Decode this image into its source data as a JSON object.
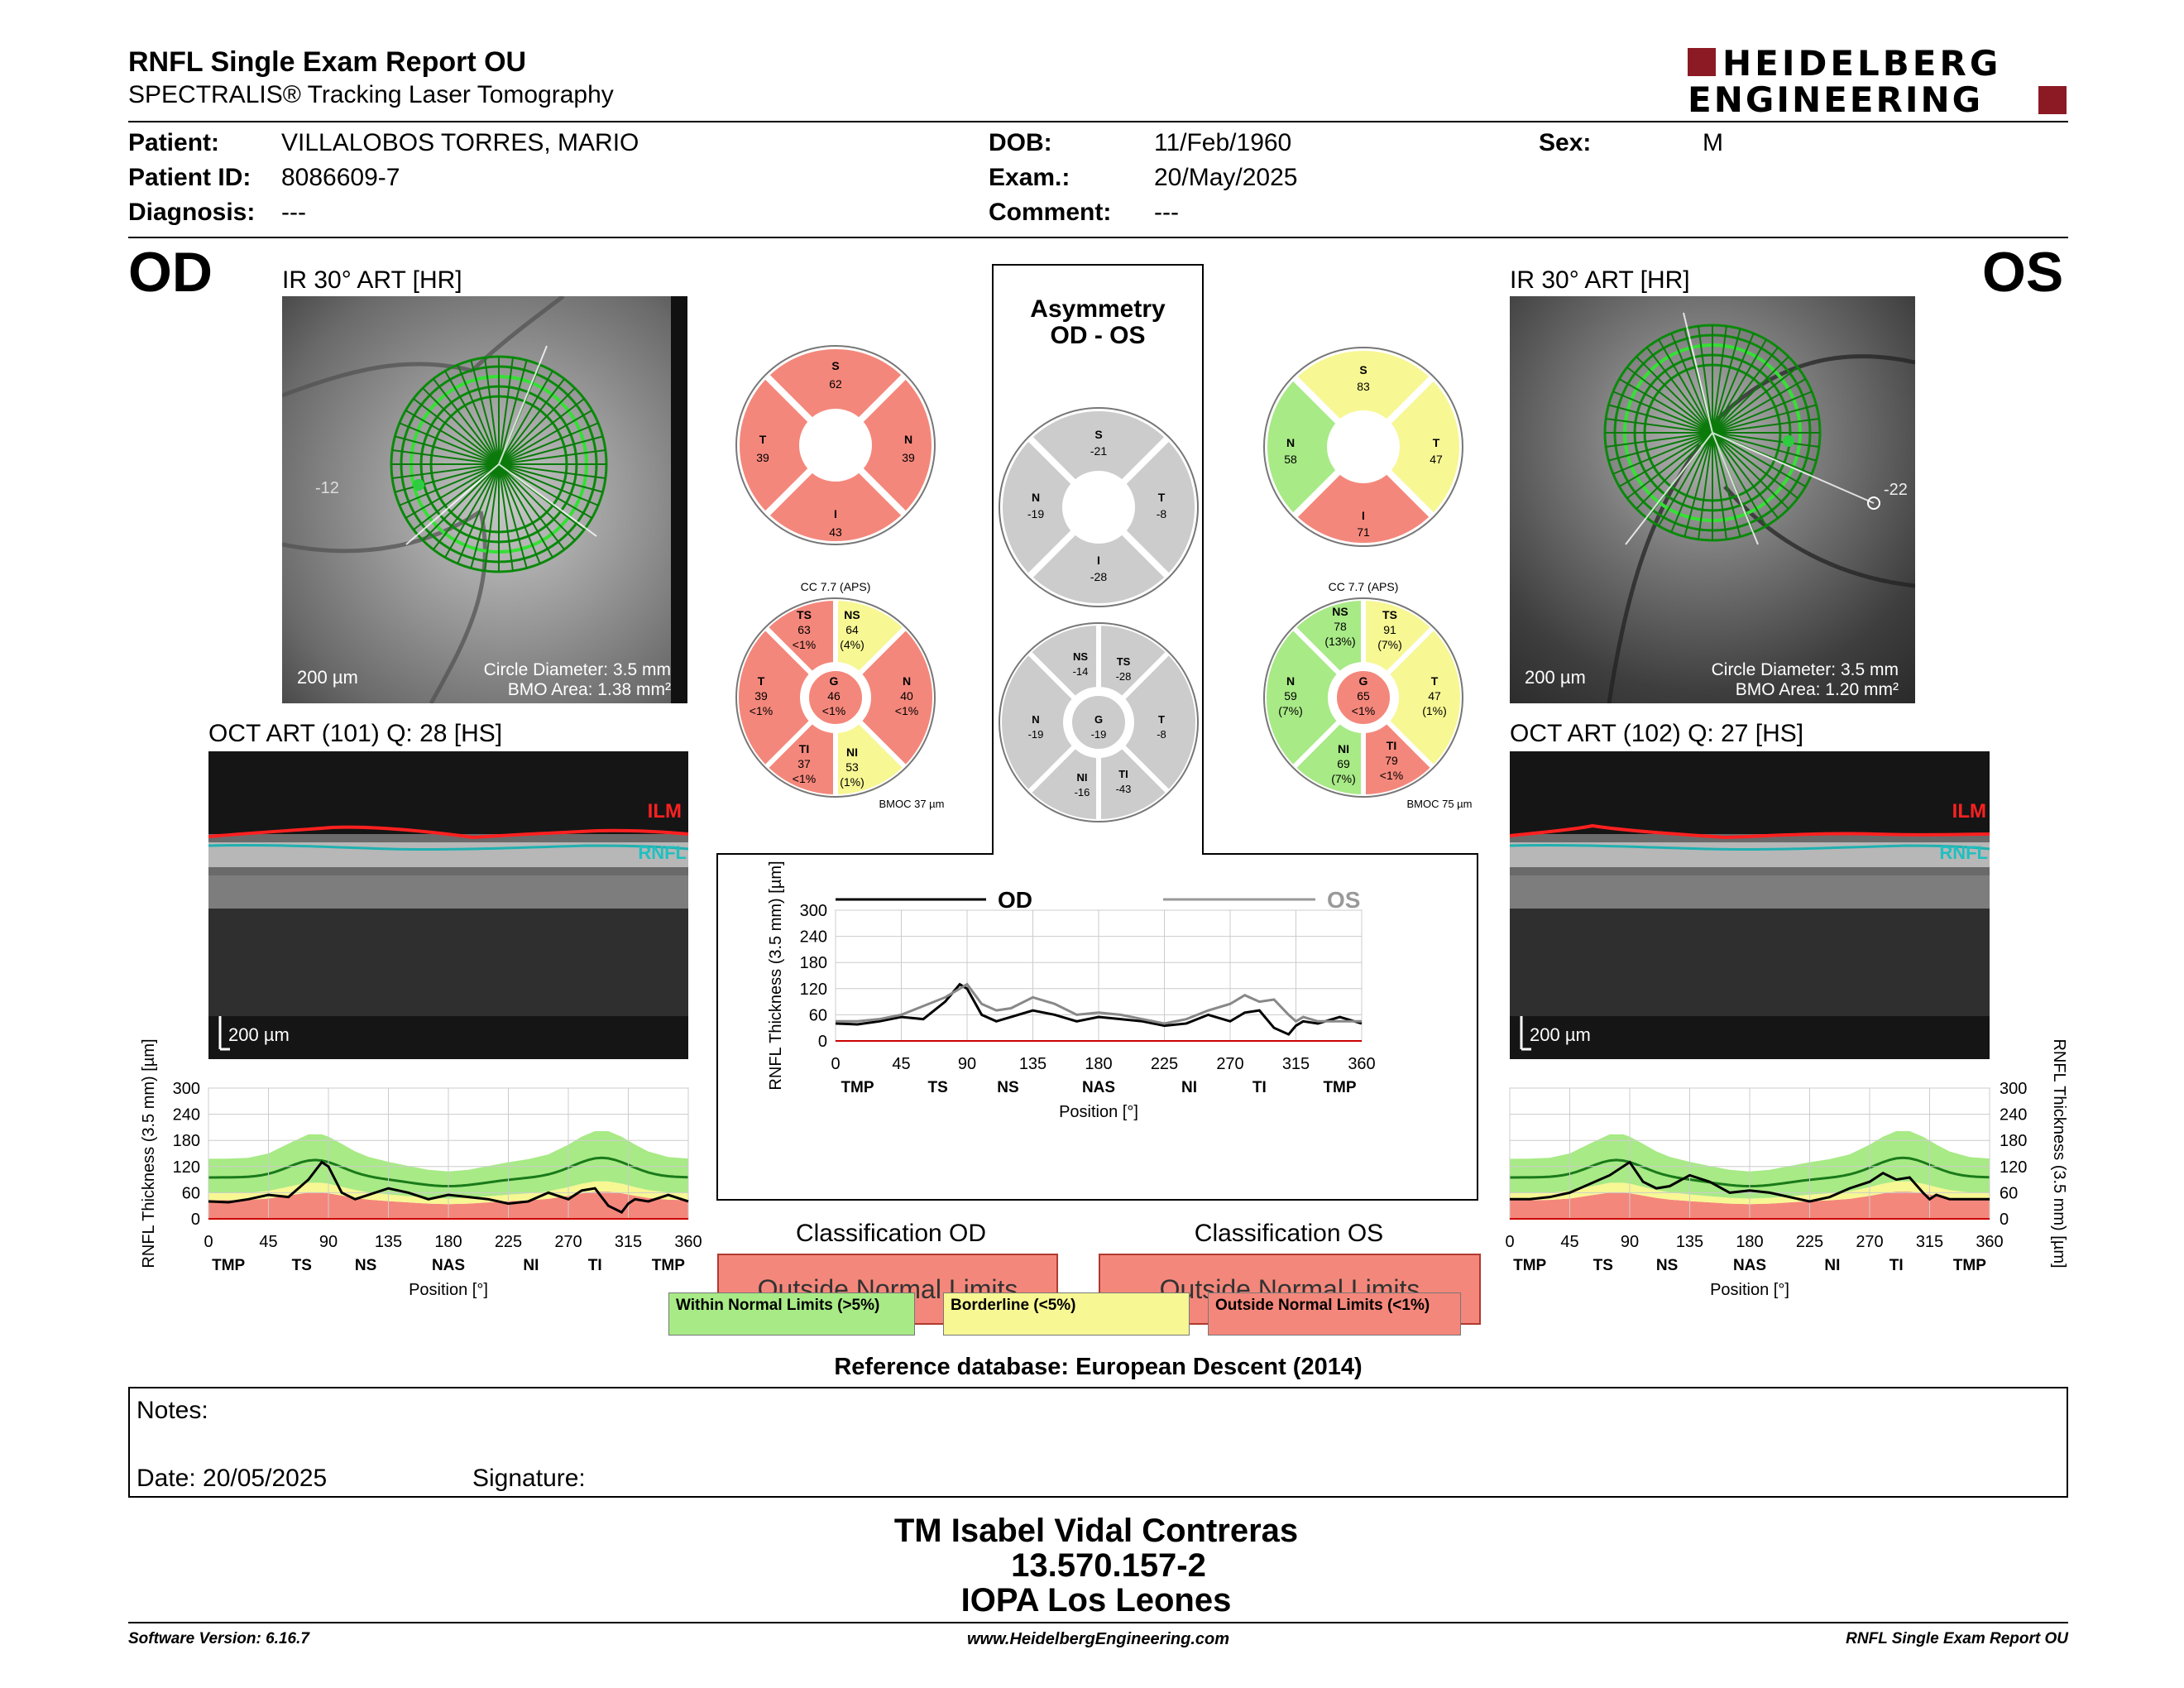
{
  "header": {
    "title": "RNFL Single Exam Report OU",
    "subtitle": "SPECTRALIS® Tracking Laser Tomography",
    "logo_line1": "HEIDELBERG",
    "logo_line2": "ENGINEERING"
  },
  "patient": {
    "patient_label": "Patient:",
    "patient_value": "VILLALOBOS TORRES, MARIO",
    "id_label": "Patient ID:",
    "id_value": "8086609-7",
    "diagnosis_label": "Diagnosis:",
    "diagnosis_value": "---",
    "dob_label": "DOB:",
    "dob_value": "11/Feb/1960",
    "exam_label": "Exam.:",
    "exam_value": "20/May/2025",
    "comment_label": "Comment:",
    "comment_value": "---",
    "sex_label": "Sex:",
    "sex_value": "M"
  },
  "od": {
    "eye": "OD",
    "ir_title": "IR 30° ART [HR]",
    "scale": "200 µm",
    "circle_diameter": "Circle Diameter: 3.5 mm",
    "bmo_area": "BMO Area: 1.38 mm²",
    "marker": "-12",
    "oct_title": "OCT ART (101) Q: 28 [HS]",
    "oct_scale": "200 µm",
    "ilm": "ILM",
    "rnfl": "RNFL",
    "quad": {
      "S": "62",
      "T": "39",
      "N": "39",
      "I": "43"
    },
    "sect": {
      "TS": [
        "63",
        "<1%"
      ],
      "NS": [
        "64",
        "(4%)"
      ],
      "T": [
        "39",
        "<1%"
      ],
      "G": [
        "46",
        "<1%"
      ],
      "N": [
        "40",
        "<1%"
      ],
      "TI": [
        "37",
        "<1%"
      ],
      "NI": [
        "53",
        "(1%)"
      ]
    },
    "cc": "CC 7.7 (APS)",
    "bmoc": "BMOC 37 µm",
    "classification_title": "Classification OD",
    "classification": "Outside Normal Limits"
  },
  "os": {
    "eye": "OS",
    "ir_title": "IR 30° ART [HR]",
    "scale": "200 µm",
    "circle_diameter": "Circle Diameter: 3.5 mm",
    "bmo_area": "BMO Area: 1.20 mm²",
    "marker": "-22",
    "oct_title": "OCT ART (102) Q: 27 [HS]",
    "oct_scale": "200 µm",
    "ilm": "ILM",
    "rnfl": "RNFL",
    "quad": {
      "S": "83",
      "N": "58",
      "T": "47",
      "I": "71"
    },
    "sect": {
      "NS": [
        "78",
        "(13%)"
      ],
      "TS": [
        "91",
        "(7%)"
      ],
      "N": [
        "59",
        "(7%)"
      ],
      "G": [
        "65",
        "<1%"
      ],
      "T": [
        "47",
        "(1%)"
      ],
      "NI": [
        "69",
        "(7%)"
      ],
      "TI": [
        "79",
        "<1%"
      ]
    },
    "cc": "CC 7.7 (APS)",
    "bmoc": "BMOC 75 µm",
    "classification_title": "Classification OS",
    "classification": "Outside Normal Limits"
  },
  "asymmetry": {
    "title1": "Asymmetry",
    "title2": "OD - OS",
    "quad": {
      "S": "-21",
      "N": "-19",
      "T": "-8",
      "I": "-28"
    },
    "sect": {
      "NS": "-14",
      "TS": "-28",
      "N": "-19",
      "G": "-19",
      "T": "-8",
      "NI": "-16",
      "TI": "-43"
    }
  },
  "chart_data": [
    {
      "type": "line",
      "title": "",
      "legend": [
        "OD",
        "OS"
      ],
      "xlabel": "Position [°]",
      "ylabel": "RNFL Thickness (3.5 mm) [µm]",
      "xlim": [
        0,
        360
      ],
      "ylim": [
        0,
        300
      ],
      "xticks": [
        "0",
        "45",
        "90",
        "135",
        "180",
        "225",
        "270",
        "315",
        "360"
      ],
      "yticks": [
        "0",
        "60",
        "120",
        "180",
        "240",
        "300"
      ],
      "sector_labels": [
        "TMP",
        "TS",
        "NS",
        "NAS",
        "NI",
        "TI",
        "TMP"
      ],
      "x": [
        0,
        15,
        30,
        45,
        60,
        75,
        85,
        90,
        100,
        110,
        120,
        135,
        150,
        165,
        180,
        195,
        210,
        225,
        240,
        255,
        270,
        280,
        290,
        300,
        310,
        315,
        320,
        330,
        345,
        360
      ],
      "series": [
        {
          "name": "OD",
          "values": [
            40,
            38,
            45,
            55,
            50,
            90,
            130,
            120,
            60,
            45,
            55,
            70,
            60,
            45,
            55,
            50,
            45,
            35,
            40,
            60,
            45,
            65,
            70,
            30,
            15,
            35,
            45,
            40,
            55,
            40
          ]
        },
        {
          "name": "OS",
          "values": [
            45,
            45,
            50,
            60,
            80,
            100,
            120,
            130,
            85,
            70,
            75,
            100,
            85,
            60,
            65,
            60,
            50,
            40,
            50,
            70,
            85,
            105,
            90,
            95,
            60,
            45,
            55,
            45,
            45,
            45
          ]
        }
      ]
    },
    {
      "type": "line",
      "title": "",
      "legend": [],
      "xlabel": "Position [°]",
      "ylabel": "RNFL Thickness (3.5 mm) [µm]",
      "xlim": [
        0,
        360
      ],
      "ylim": [
        0,
        300
      ],
      "xticks": [
        "0",
        "45",
        "90",
        "135",
        "180",
        "225",
        "270",
        "315",
        "360"
      ],
      "yticks": [
        "0",
        "60",
        "120",
        "180",
        "240",
        "300"
      ],
      "sector_labels": [
        "TMP",
        "TS",
        "NS",
        "NAS",
        "NI",
        "TI",
        "TMP"
      ],
      "x": [
        0,
        15,
        30,
        45,
        60,
        75,
        85,
        90,
        100,
        110,
        120,
        135,
        150,
        165,
        180,
        195,
        210,
        225,
        240,
        255,
        270,
        280,
        290,
        300,
        310,
        315,
        320,
        330,
        345,
        360
      ],
      "series": [
        {
          "name": "OD",
          "values": [
            40,
            38,
            45,
            55,
            50,
            90,
            130,
            120,
            60,
            45,
            55,
            70,
            60,
            45,
            55,
            50,
            45,
            35,
            40,
            60,
            45,
            65,
            70,
            30,
            15,
            35,
            45,
            40,
            55,
            40
          ]
        }
      ]
    },
    {
      "type": "line",
      "title": "",
      "legend": [],
      "xlabel": "Position [°]",
      "ylabel": "RNFL Thickness (3.5 mm) [µm]",
      "xlim": [
        0,
        360
      ],
      "ylim": [
        0,
        300
      ],
      "xticks": [
        "0",
        "45",
        "90",
        "135",
        "180",
        "225",
        "270",
        "315",
        "360"
      ],
      "yticks": [
        "0",
        "60",
        "120",
        "180",
        "240",
        "300"
      ],
      "sector_labels": [
        "TMP",
        "TS",
        "NS",
        "NAS",
        "NI",
        "TI",
        "TMP"
      ],
      "x": [
        0,
        15,
        30,
        45,
        60,
        75,
        85,
        90,
        100,
        110,
        120,
        135,
        150,
        165,
        180,
        195,
        210,
        225,
        240,
        255,
        270,
        280,
        290,
        300,
        310,
        315,
        320,
        330,
        345,
        360
      ],
      "series": [
        {
          "name": "OS",
          "values": [
            45,
            45,
            50,
            60,
            80,
            100,
            120,
            130,
            85,
            70,
            75,
            100,
            85,
            60,
            65,
            60,
            50,
            40,
            50,
            70,
            85,
            105,
            90,
            95,
            60,
            45,
            55,
            45,
            45,
            45
          ]
        }
      ]
    }
  ],
  "legend_classes": {
    "within": "Within Normal Limits (>5%)",
    "borderline": "Borderline (<5%)",
    "outside": "Outside Normal Limits (<1%)"
  },
  "colors": {
    "within": "#a8ea86",
    "borderline": "#f7f794",
    "outside": "#f4877b",
    "asym": "#cccccc"
  },
  "reference": "Reference database: European Descent (2014)",
  "notes": {
    "notes_label": "Notes:",
    "date_label": "Date: 20/05/2025",
    "signature_label": "Signature:"
  },
  "signature": {
    "name": "TM Isabel Vidal Contreras",
    "rut": "13.570.157-2",
    "org": "IOPA Los Leones"
  },
  "footer": {
    "version": "Software Version: 6.16.7",
    "url": "www.HeidelbergEngineering.com",
    "report": "RNFL Single Exam Report OU"
  }
}
